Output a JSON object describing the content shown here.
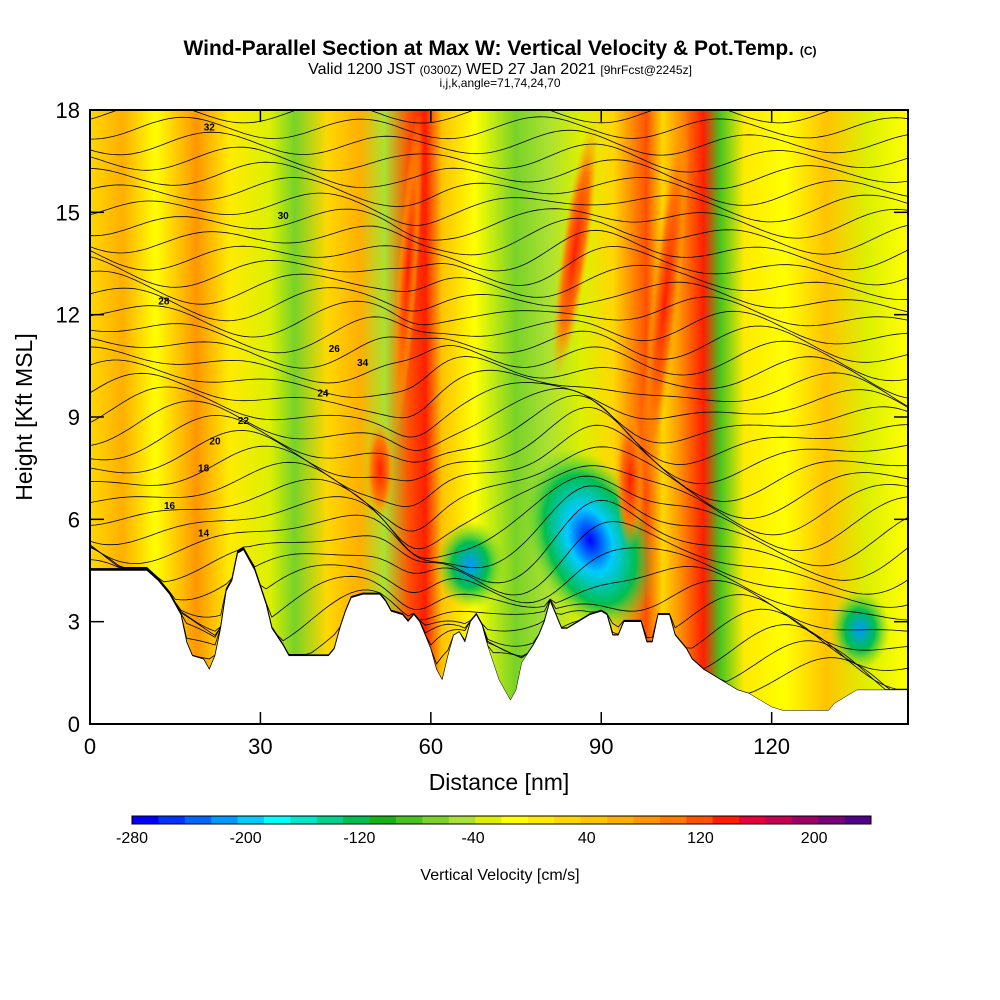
{
  "title": "Wind-Parallel Section at Max W: Vertical Velocity & Pot.Temp.",
  "title_mark": "(C)",
  "subtitle_valid": "Valid 1200 JST",
  "subtitle_utc": "(0300Z)",
  "subtitle_date": "WED 27 Jan 2021",
  "subtitle_fcst": "[9hrFcst@2245z]",
  "subtitle2": "i,j,k,angle=71,74,24,70",
  "chart_data": {
    "type": "heatmap",
    "xlabel": "Distance [nm]",
    "ylabel": "Height [Kft MSL]",
    "xlim": [
      0,
      144
    ],
    "ylim": [
      0,
      18
    ],
    "x_ticks": [
      0,
      30,
      60,
      90,
      120
    ],
    "y_ticks": [
      0,
      3,
      6,
      9,
      12,
      15,
      18
    ],
    "colorbar": {
      "label": "Vertical Velocity [cm/s]",
      "min": -280,
      "max": 240,
      "step": 20,
      "tick_labels": [
        -280,
        -200,
        -120,
        -40,
        40,
        120,
        200
      ],
      "colors": [
        "#0000ff",
        "#0033ff",
        "#0066ff",
        "#0099ff",
        "#00ccff",
        "#00ffff",
        "#00e6c8",
        "#00d28c",
        "#00be50",
        "#14b414",
        "#46c31e",
        "#78d228",
        "#aae132",
        "#dcf000",
        "#ffff00",
        "#ffeb00",
        "#ffd700",
        "#ffc300",
        "#ffaf00",
        "#ff9600",
        "#ff7800",
        "#ff5000",
        "#ff1e00",
        "#e6003c",
        "#c80050",
        "#a00064",
        "#780078",
        "#50008c"
      ]
    },
    "theta_contour_labels": [
      14,
      16,
      18,
      20,
      22,
      24,
      26,
      28,
      30,
      32,
      34
    ],
    "terrain_height_kft": [
      [
        0,
        4.5
      ],
      [
        5,
        4.5
      ],
      [
        8,
        4.5
      ],
      [
        10,
        4.5
      ],
      [
        12,
        4.2
      ],
      [
        14,
        3.8
      ],
      [
        16,
        3.2
      ],
      [
        17,
        2.4
      ],
      [
        18,
        2.0
      ],
      [
        20,
        1.9
      ],
      [
        21,
        1.6
      ],
      [
        22,
        2.0
      ],
      [
        23,
        2.8
      ],
      [
        24,
        3.9
      ],
      [
        25,
        4.2
      ],
      [
        26,
        5.0
      ],
      [
        27,
        5.1
      ],
      [
        29,
        4.5
      ],
      [
        31,
        3.5
      ],
      [
        32,
        2.8
      ],
      [
        34,
        2.3
      ],
      [
        35,
        2.0
      ],
      [
        38,
        2.0
      ],
      [
        42,
        2.0
      ],
      [
        43,
        2.2
      ],
      [
        44,
        2.8
      ],
      [
        45,
        3.3
      ],
      [
        46,
        3.7
      ],
      [
        48,
        3.8
      ],
      [
        51,
        3.8
      ],
      [
        52,
        3.6
      ],
      [
        53,
        3.3
      ],
      [
        55,
        3.2
      ],
      [
        56,
        3.0
      ],
      [
        57,
        3.2
      ],
      [
        58,
        3.0
      ],
      [
        59,
        2.6
      ],
      [
        60,
        2.2
      ],
      [
        61,
        1.6
      ],
      [
        62,
        1.3
      ],
      [
        63,
        2.0
      ],
      [
        64,
        2.6
      ],
      [
        65,
        2.7
      ],
      [
        66,
        2.4
      ],
      [
        67,
        3.0
      ],
      [
        68,
        3.2
      ],
      [
        69,
        2.9
      ],
      [
        70,
        2.3
      ],
      [
        71,
        1.8
      ],
      [
        72,
        1.3
      ],
      [
        73,
        1.0
      ],
      [
        74,
        0.7
      ],
      [
        75,
        1.0
      ],
      [
        76,
        1.8
      ],
      [
        78,
        2.3
      ],
      [
        79,
        2.6
      ],
      [
        80,
        3.0
      ],
      [
        81,
        3.6
      ],
      [
        82,
        3.2
      ],
      [
        83,
        2.8
      ],
      [
        84,
        2.8
      ],
      [
        86,
        3.0
      ],
      [
        88,
        3.2
      ],
      [
        90,
        3.3
      ],
      [
        91,
        3.2
      ],
      [
        92,
        2.6
      ],
      [
        93,
        2.6
      ],
      [
        94,
        3.0
      ],
      [
        95,
        3.0
      ],
      [
        97,
        3.0
      ],
      [
        98,
        2.4
      ],
      [
        99,
        2.4
      ],
      [
        100,
        3.2
      ],
      [
        102,
        3.2
      ],
      [
        103,
        2.6
      ],
      [
        104,
        2.4
      ],
      [
        105,
        2.2
      ],
      [
        106,
        1.9
      ],
      [
        108,
        1.6
      ],
      [
        110,
        1.4
      ],
      [
        112,
        1.2
      ],
      [
        114,
        1.0
      ],
      [
        116,
        0.9
      ],
      [
        118,
        0.7
      ],
      [
        120,
        0.5
      ],
      [
        122,
        0.4
      ],
      [
        125,
        0.4
      ],
      [
        130,
        0.4
      ],
      [
        131,
        0.6
      ],
      [
        133,
        0.8
      ],
      [
        135,
        1.0
      ],
      [
        144,
        1.0
      ]
    ]
  }
}
